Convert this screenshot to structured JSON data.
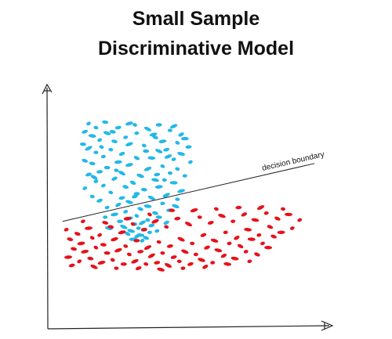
{
  "title": {
    "line1": "Small Sample",
    "line2": "Discriminative Model"
  },
  "boundary_label": "decision boundary",
  "colors": {
    "class_a": "#22b8e8",
    "class_b": "#e8101a",
    "line": "#222222",
    "text": "#111111"
  },
  "chart_data": {
    "type": "scatter",
    "series": [
      {
        "color": "#22b8e8",
        "points": [
          [
            1.1,
            0.99
          ],
          [
            1.55,
            1.0
          ],
          [
            2.2,
            0.99
          ],
          [
            2.35,
            0.98
          ],
          [
            3.0,
            0.98
          ],
          [
            3.4,
            0.97
          ],
          [
            1.3,
            0.96
          ],
          [
            1.9,
            0.96
          ],
          [
            2.7,
            0.95
          ],
          [
            3.3,
            0.94
          ],
          [
            1.0,
            0.93
          ],
          [
            1.6,
            0.92
          ],
          [
            2.4,
            0.92
          ],
          [
            3.6,
            0.91
          ],
          [
            1.2,
            0.9
          ],
          [
            2.1,
            0.89
          ],
          [
            2.9,
            0.89
          ],
          [
            3.7,
            0.88
          ],
          [
            1.4,
            0.87
          ],
          [
            1.8,
            0.86
          ],
          [
            3.1,
            0.86
          ],
          [
            3.5,
            0.85
          ],
          [
            0.95,
            0.84
          ],
          [
            2.2,
            0.84
          ],
          [
            2.6,
            0.83
          ],
          [
            3.8,
            0.82
          ],
          [
            1.1,
            0.81
          ],
          [
            1.7,
            0.8
          ],
          [
            3.2,
            0.8
          ],
          [
            3.0,
            0.79
          ],
          [
            1.3,
            0.78
          ],
          [
            2.0,
            0.77
          ],
          [
            3.6,
            0.77
          ],
          [
            1.5,
            0.75
          ],
          [
            2.4,
            0.74
          ],
          [
            2.8,
            0.74
          ],
          [
            3.4,
            0.73
          ],
          [
            1.0,
            0.72
          ],
          [
            1.9,
            0.71
          ],
          [
            3.85,
            0.71
          ],
          [
            1.2,
            0.7
          ],
          [
            2.2,
            0.69
          ],
          [
            3.1,
            0.68
          ],
          [
            1.6,
            0.67
          ],
          [
            2.7,
            0.66
          ],
          [
            3.5,
            0.66
          ],
          [
            1.4,
            0.64
          ],
          [
            2.0,
            0.63
          ],
          [
            3.3,
            0.63
          ],
          [
            1.1,
            0.62
          ],
          [
            2.5,
            0.61
          ],
          [
            3.7,
            0.61
          ],
          [
            1.8,
            0.59
          ],
          [
            2.9,
            0.58
          ],
          [
            1.3,
            0.57
          ],
          [
            2.3,
            0.56
          ],
          [
            3.4,
            0.56
          ],
          [
            1.5,
            0.54
          ],
          [
            2.1,
            0.53
          ],
          [
            3.0,
            0.53
          ],
          [
            1.0,
            0.52
          ],
          [
            2.6,
            0.51
          ],
          [
            3.6,
            0.5
          ],
          [
            1.7,
            0.49
          ],
          [
            2.4,
            0.48
          ],
          [
            3.2,
            0.47
          ],
          [
            1.2,
            0.46
          ],
          [
            2.0,
            0.45
          ],
          [
            2.8,
            0.45
          ],
          [
            3.5,
            0.44
          ],
          [
            1.4,
            0.43
          ],
          [
            2.2,
            0.42
          ],
          [
            3.1,
            0.41
          ],
          [
            1.9,
            0.4
          ],
          [
            2.7,
            0.39
          ],
          [
            1.6,
            0.38
          ],
          [
            2.5,
            0.37
          ],
          [
            3.3,
            0.36
          ],
          [
            2.1,
            0.35
          ],
          [
            2.9,
            0.34
          ],
          [
            1.8,
            0.33
          ],
          [
            2.4,
            0.32
          ],
          [
            3.0,
            0.31
          ],
          [
            2.2,
            0.3
          ],
          [
            2.7,
            0.29
          ],
          [
            1.95,
            0.28
          ],
          [
            2.55,
            0.27
          ],
          [
            2.35,
            0.26
          ],
          [
            2.8,
            0.25
          ],
          [
            2.05,
            0.24
          ],
          [
            2.45,
            0.23
          ],
          [
            2.6,
            0.22
          ],
          [
            2.25,
            0.21
          ],
          [
            2.75,
            0.2
          ],
          [
            2.15,
            0.19
          ],
          [
            2.5,
            0.18
          ],
          [
            2.4,
            0.17
          ],
          [
            2.65,
            0.16
          ],
          [
            2.3,
            0.15
          ],
          [
            2.55,
            0.14
          ],
          [
            1.75,
            0.93
          ],
          [
            2.85,
            0.91
          ],
          [
            1.45,
            0.82
          ],
          [
            2.65,
            0.79
          ],
          [
            3.25,
            0.75
          ],
          [
            1.85,
            0.65
          ],
          [
            2.95,
            0.62
          ],
          [
            1.25,
            0.6
          ],
          [
            3.15,
            0.58
          ],
          [
            2.35,
            0.46
          ],
          [
            3.45,
            0.39
          ],
          [
            1.55,
            0.31
          ],
          [
            3.2,
            0.27
          ],
          [
            1.65,
            0.23
          ],
          [
            2.95,
            0.21
          ]
        ]
      },
      {
        "color": "#e8101a",
        "points": [
          [
            0.5,
            0.22
          ],
          [
            0.8,
            0.19
          ],
          [
            1.1,
            0.23
          ],
          [
            1.4,
            0.18
          ],
          [
            1.7,
            0.24
          ],
          [
            2.0,
            0.2
          ],
          [
            2.3,
            0.26
          ],
          [
            2.6,
            0.22
          ],
          [
            2.9,
            0.28
          ],
          [
            3.2,
            0.24
          ],
          [
            3.5,
            0.3
          ],
          [
            3.8,
            0.26
          ],
          [
            4.1,
            0.31
          ],
          [
            4.4,
            0.27
          ],
          [
            4.7,
            0.32
          ],
          [
            5.0,
            0.28
          ],
          [
            5.3,
            0.33
          ],
          [
            5.6,
            0.29
          ],
          [
            5.9,
            0.34
          ],
          [
            6.2,
            0.3
          ],
          [
            6.5,
            0.33
          ],
          [
            6.8,
            0.29
          ],
          [
            0.6,
            0.15
          ],
          [
            0.9,
            0.12
          ],
          [
            1.2,
            0.16
          ],
          [
            1.5,
            0.11
          ],
          [
            1.8,
            0.15
          ],
          [
            2.1,
            0.1
          ],
          [
            2.4,
            0.14
          ],
          [
            2.7,
            0.09
          ],
          [
            3.0,
            0.13
          ],
          [
            3.3,
            0.1
          ],
          [
            3.6,
            0.15
          ],
          [
            3.9,
            0.12
          ],
          [
            4.2,
            0.18
          ],
          [
            4.5,
            0.14
          ],
          [
            4.8,
            0.2
          ],
          [
            5.1,
            0.16
          ],
          [
            5.4,
            0.22
          ],
          [
            5.7,
            0.18
          ],
          [
            6.0,
            0.24
          ],
          [
            6.3,
            0.2
          ],
          [
            6.6,
            0.23
          ],
          [
            0.7,
            0.08
          ],
          [
            1.0,
            0.06
          ],
          [
            1.3,
            0.09
          ],
          [
            1.6,
            0.05
          ],
          [
            1.9,
            0.07
          ],
          [
            2.2,
            0.04
          ],
          [
            2.5,
            0.06
          ],
          [
            2.8,
            0.03
          ],
          [
            3.1,
            0.05
          ],
          [
            3.4,
            0.02
          ],
          [
            3.7,
            0.06
          ],
          [
            4.0,
            0.04
          ],
          [
            4.3,
            0.09
          ],
          [
            4.6,
            0.07
          ],
          [
            4.9,
            0.12
          ],
          [
            5.2,
            0.1
          ],
          [
            5.5,
            0.15
          ],
          [
            5.8,
            0.12
          ],
          [
            6.1,
            0.17
          ],
          [
            0.55,
            0.02
          ],
          [
            0.85,
            -0.01
          ],
          [
            1.15,
            0.01
          ],
          [
            1.45,
            -0.02
          ],
          [
            1.75,
            0.0
          ],
          [
            2.05,
            -0.03
          ],
          [
            2.35,
            -0.01
          ],
          [
            2.65,
            -0.03
          ],
          [
            2.95,
            -0.02
          ],
          [
            3.25,
            -0.04
          ],
          [
            3.55,
            -0.01
          ],
          [
            3.85,
            -0.03
          ],
          [
            4.15,
            0.0
          ],
          [
            4.45,
            -0.02
          ],
          [
            4.75,
            0.03
          ],
          [
            5.05,
            0.01
          ],
          [
            5.35,
            0.06
          ],
          [
            5.65,
            0.04
          ],
          [
            5.95,
            0.09
          ],
          [
            0.95,
            0.28
          ],
          [
            1.55,
            0.27
          ],
          [
            2.15,
            0.3
          ],
          [
            2.75,
            0.33
          ],
          [
            3.35,
            0.36
          ],
          [
            3.95,
            0.36
          ],
          [
            4.55,
            0.37
          ],
          [
            5.15,
            0.38
          ],
          [
            5.75,
            0.38
          ],
          [
            6.35,
            0.37
          ],
          [
            0.65,
            -0.04
          ],
          [
            1.25,
            -0.05
          ],
          [
            1.85,
            -0.06
          ],
          [
            2.45,
            -0.06
          ],
          [
            3.05,
            -0.07
          ],
          [
            3.65,
            -0.06
          ],
          [
            4.25,
            -0.05
          ],
          [
            4.85,
            -0.03
          ],
          [
            5.45,
            -0.01
          ]
        ]
      }
    ],
    "decision_boundary": {
      "from": [
        0.4,
        0.28
      ],
      "to": [
        7.2,
        0.7
      ]
    },
    "xlim": [
      0,
      7.6
    ],
    "ylim": [
      -0.5,
      1.25
    ]
  }
}
